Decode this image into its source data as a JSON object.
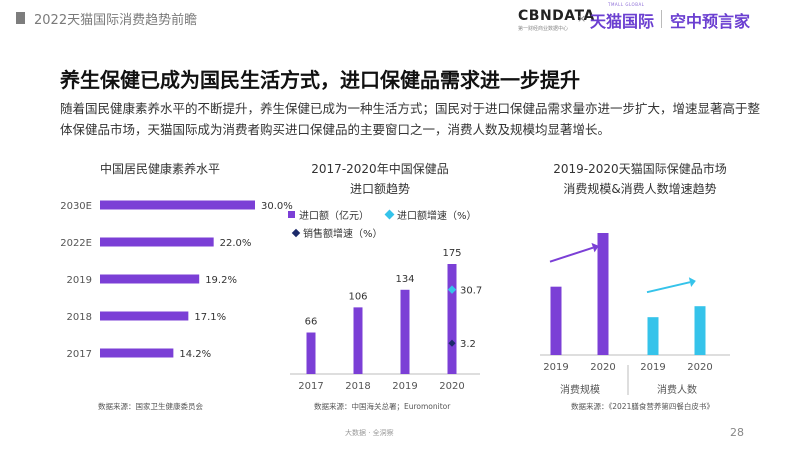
{
  "header": {
    "title": "2022天猫国际消费趋势前瞻"
  },
  "brands": {
    "cbndata": "CBNDATA",
    "cbndata_sub": "第一财经商业数据中心",
    "x_mark": "×",
    "tmall": "天猫国际",
    "tmall_small": "TMALL GLOBAL",
    "sky": "空中预言家"
  },
  "main": {
    "title": "养生保健已成为国民生活方式，进口保健品需求进一步提升",
    "description": "随着国民健康素养水平的不断提升，养生保健已成为一种生活方式；国民对于进口保健品需求量亦进一步扩大，增速显著高于整体保健品市场，天猫国际成为消费者购买进口保健品的主要窗口之一，消费人数及规模均显著增长。"
  },
  "colors": {
    "purple": "#7b3fd6",
    "cyan": "#35c3ea",
    "navy": "#1c2a6a",
    "axis": "#bdbdbd"
  },
  "chart_data": [
    {
      "type": "bar",
      "orientation": "horizontal",
      "title": "中国居民健康素养水平",
      "categories": [
        "2030E",
        "2022E",
        "2019",
        "2018",
        "2017"
      ],
      "values": [
        30.0,
        22.0,
        19.2,
        17.1,
        14.2
      ],
      "value_labels": [
        "30.0%",
        "22.0%",
        "19.2%",
        "17.1%",
        "14.2%"
      ],
      "source": "数据来源：国家卫生健康委员会"
    },
    {
      "type": "bar",
      "title_line1": "2017-2020年中国保健品",
      "title_line2": "进口额趋势",
      "categories": [
        "2017",
        "2018",
        "2019",
        "2020"
      ],
      "values": [
        66,
        106,
        134,
        175
      ],
      "legend": [
        "进口额（亿元）",
        "进口额增速（%）",
        "销售额增速（%）"
      ],
      "point_labels": {
        "import_growth_2020": "30.7",
        "sales_growth_2020": "3.2"
      },
      "import_growth_2020": 30.7,
      "sales_growth_2020": 3.2,
      "source": "数据来源：中国海关总署；Euromonitor"
    },
    {
      "type": "bar",
      "title_line1": "2019-2020天猫国际保健品市场",
      "title_line2": "消费规模&消费人数增速趋势",
      "groups": [
        {
          "label": "消费规模",
          "categories": [
            "2019",
            "2020"
          ],
          "values": [
            0.56,
            1.0
          ]
        },
        {
          "label": "消费人数",
          "categories": [
            "2019",
            "2020"
          ],
          "values": [
            0.31,
            0.4
          ]
        }
      ],
      "source": "数据来源：《2021膳食营养第四餐白皮书》"
    }
  ],
  "footer": {
    "text": "大数据 · 全洞察",
    "page": "28"
  }
}
